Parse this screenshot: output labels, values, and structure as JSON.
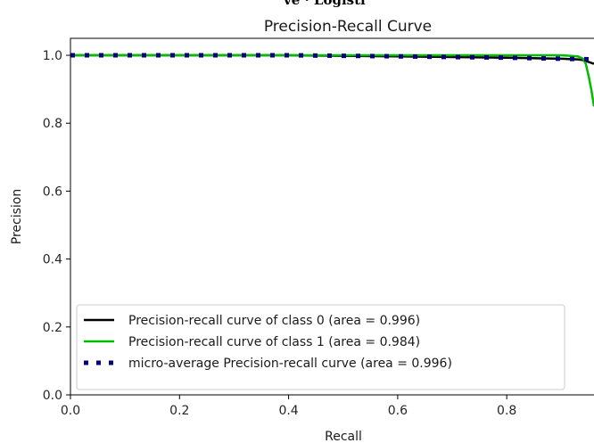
{
  "cutoff_text": "ve · Logisti",
  "chart_data": {
    "type": "line",
    "title": "Precision-Recall Curve",
    "xlabel": "Recall",
    "ylabel": "Precision",
    "xlim": [
      0.0,
      0.96
    ],
    "ylim": [
      0.0,
      1.05
    ],
    "x_ticks": [
      0.0,
      0.2,
      0.4,
      0.6,
      0.8
    ],
    "x_tick_labels": [
      "0.0",
      "0.2",
      "0.4",
      "0.6",
      "0.8"
    ],
    "y_ticks": [
      0.0,
      0.2,
      0.4,
      0.6,
      0.8,
      1.0
    ],
    "y_tick_labels": [
      "0.0",
      "0.2",
      "0.4",
      "0.6",
      "0.8",
      "1.0"
    ],
    "grid": false,
    "legend_position": "lower-left",
    "series": [
      {
        "name": "Precision-recall curve of class 0 (area = 0.996)",
        "color": "#000000",
        "style": "solid",
        "x": [
          0.0,
          0.2,
          0.4,
          0.6,
          0.7,
          0.8,
          0.9,
          0.93,
          0.94,
          0.96
        ],
        "y": [
          1.0,
          1.0,
          1.0,
          0.997,
          0.995,
          0.993,
          0.99,
          0.988,
          0.986,
          0.975
        ]
      },
      {
        "name": "Precision-recall curve of class 1 (area = 0.984)",
        "color": "#00bb00",
        "style": "solid",
        "x": [
          0.0,
          0.2,
          0.4,
          0.6,
          0.8,
          0.9,
          0.93,
          0.94,
          0.945,
          0.95,
          0.955,
          0.96
        ],
        "y": [
          1.0,
          1.0,
          1.0,
          1.0,
          1.0,
          1.0,
          0.997,
          0.99,
          0.975,
          0.94,
          0.9,
          0.85
        ]
      },
      {
        "name": "micro-average Precision-recall curve (area = 0.996)",
        "color": "#000080",
        "style": "dotted",
        "x": [
          0.0,
          0.2,
          0.4,
          0.6,
          0.7,
          0.8,
          0.9,
          0.96
        ],
        "y": [
          1.0,
          1.0,
          1.0,
          0.997,
          0.995,
          0.993,
          0.99,
          0.988
        ]
      }
    ]
  }
}
